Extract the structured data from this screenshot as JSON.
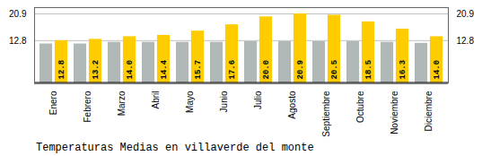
{
  "chart_data": {
    "type": "bar",
    "title": "Temperaturas Medias en villaverde del monte",
    "categories": [
      "Enero",
      "Febrero",
      "Marzo",
      "Abril",
      "Mayo",
      "Junio",
      "Julio",
      "Agosto",
      "Septiembre",
      "Octubre",
      "Noviembre",
      "Diciembre"
    ],
    "series": [
      {
        "color": "#B0B8B8",
        "values": [
          11.8,
          11.8,
          12.3,
          12.3,
          12.3,
          12.3,
          12.5,
          12.5,
          12.5,
          12.5,
          12.3,
          12.0
        ]
      },
      {
        "color": "#FFCC00",
        "values": [
          12.8,
          13.2,
          14.0,
          14.4,
          15.7,
          17.6,
          20.0,
          20.9,
          20.5,
          18.5,
          16.3,
          14.0
        ],
        "data_labels": true,
        "value_labels": [
          "12.8",
          "13.2",
          "14.0",
          "14.4",
          "15.7",
          "17.6",
          "20.0",
          "20.9",
          "20.5",
          "18.5",
          "16.3",
          "14.0"
        ]
      }
    ],
    "ylim": [
      0,
      22.8
    ],
    "yticks": [
      12.8,
      20.9
    ],
    "grid": true
  }
}
